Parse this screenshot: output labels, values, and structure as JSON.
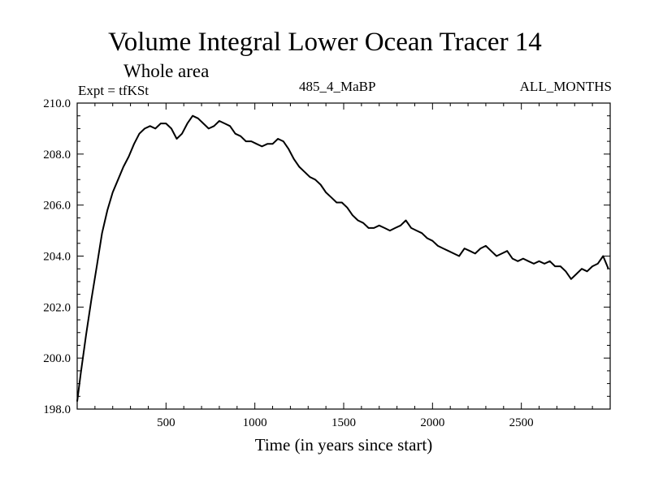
{
  "chart_data": {
    "type": "line",
    "title": "Volume Integral Lower Ocean Tracer 14",
    "subtitle": "Whole area",
    "expt_label": "Expt = tfKSt",
    "center_label": "485_4_MaBP",
    "right_label": "ALL_MONTHS",
    "xlabel": "Time (in years since start)",
    "ylabel": "",
    "xlim": [
      0,
      3000
    ],
    "ylim": [
      198.0,
      210.0
    ],
    "xticks": [
      500,
      1000,
      1500,
      2000,
      2500
    ],
    "xtick_labels": [
      "500",
      "1000",
      "1500",
      "2000",
      "2500"
    ],
    "yticks": [
      198.0,
      200.0,
      202.0,
      204.0,
      206.0,
      208.0,
      210.0
    ],
    "ytick_labels": [
      "198.0",
      "200.0",
      "202.0",
      "204.0",
      "206.0",
      "208.0",
      "210.0"
    ],
    "grid": false,
    "series": [
      {
        "name": "Lower Ocean Tracer 14",
        "x": [
          0,
          20,
          50,
          80,
          110,
          140,
          170,
          200,
          230,
          260,
          290,
          320,
          350,
          380,
          410,
          440,
          470,
          500,
          530,
          560,
          590,
          620,
          650,
          680,
          710,
          740,
          770,
          800,
          830,
          860,
          890,
          920,
          950,
          980,
          1010,
          1040,
          1070,
          1100,
          1130,
          1160,
          1190,
          1220,
          1250,
          1280,
          1310,
          1340,
          1370,
          1400,
          1430,
          1460,
          1490,
          1520,
          1550,
          1580,
          1610,
          1640,
          1670,
          1700,
          1730,
          1760,
          1790,
          1820,
          1850,
          1880,
          1910,
          1940,
          1970,
          2000,
          2030,
          2060,
          2090,
          2120,
          2150,
          2180,
          2210,
          2240,
          2270,
          2300,
          2330,
          2360,
          2390,
          2420,
          2450,
          2480,
          2510,
          2540,
          2570,
          2600,
          2630,
          2660,
          2690,
          2720,
          2750,
          2780,
          2810,
          2840,
          2870,
          2900,
          2930,
          2960,
          2990
        ],
        "values": [
          198.3,
          199.4,
          200.9,
          202.3,
          203.6,
          204.9,
          205.8,
          206.5,
          207.0,
          207.5,
          207.9,
          208.4,
          208.8,
          209.0,
          209.1,
          209.0,
          209.2,
          209.2,
          209.0,
          208.6,
          208.8,
          209.2,
          209.5,
          209.4,
          209.2,
          209.0,
          209.1,
          209.3,
          209.2,
          209.1,
          208.8,
          208.7,
          208.5,
          208.5,
          208.4,
          208.3,
          208.4,
          208.4,
          208.6,
          208.5,
          208.2,
          207.8,
          207.5,
          207.3,
          207.1,
          207.0,
          206.8,
          206.5,
          206.3,
          206.1,
          206.1,
          205.9,
          205.6,
          205.4,
          205.3,
          205.1,
          205.1,
          205.2,
          205.1,
          205.0,
          205.1,
          205.2,
          205.4,
          205.1,
          205.0,
          204.9,
          204.7,
          204.6,
          204.4,
          204.3,
          204.2,
          204.1,
          204.0,
          204.3,
          204.2,
          204.1,
          204.3,
          204.4,
          204.2,
          204.0,
          204.1,
          204.2,
          203.9,
          203.8,
          203.9,
          203.8,
          203.7,
          203.8,
          203.7,
          203.8,
          203.6,
          203.6,
          203.4,
          203.1,
          203.3,
          203.5,
          203.4,
          203.6,
          203.7,
          204.0,
          203.5
        ]
      }
    ]
  },
  "colors": {
    "line": "#000000",
    "axes": "#000000",
    "background": "#ffffff"
  }
}
